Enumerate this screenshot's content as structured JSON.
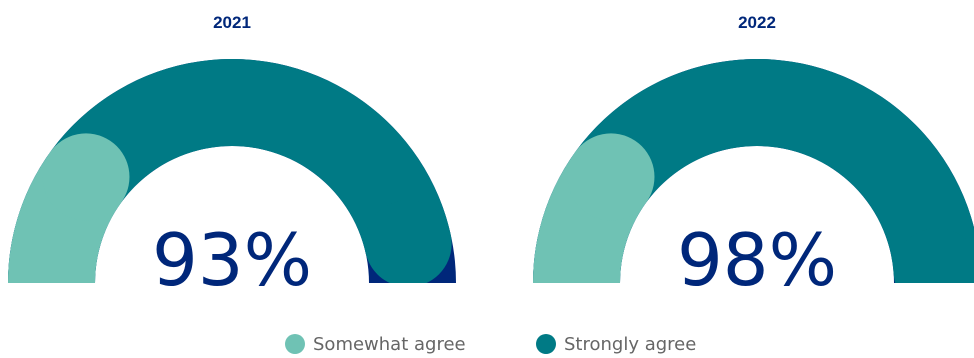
{
  "chart_data": {
    "type": "gauge",
    "gauges": [
      {
        "title": "2021",
        "label": "93%",
        "segments": [
          {
            "name": "Somewhat agree",
            "value": 20
          },
          {
            "name": "Strongly agree",
            "value": 73
          }
        ]
      },
      {
        "title": "2022",
        "label": "98%",
        "segments": [
          {
            "name": "Somewhat agree",
            "value": 20
          },
          {
            "name": "Strongly agree",
            "value": 78
          }
        ]
      }
    ],
    "legend": [
      {
        "label": "Somewhat agree",
        "color": "#6FC2B4"
      },
      {
        "label": "Strongly agree",
        "color": "#007A85"
      }
    ],
    "legend_position": "bottom-center",
    "colors": {
      "somewhat": "#6FC2B4",
      "strongly": "#007A85",
      "remainder": "#00277A",
      "text": "#00277A",
      "legend_text": "#666666"
    }
  }
}
